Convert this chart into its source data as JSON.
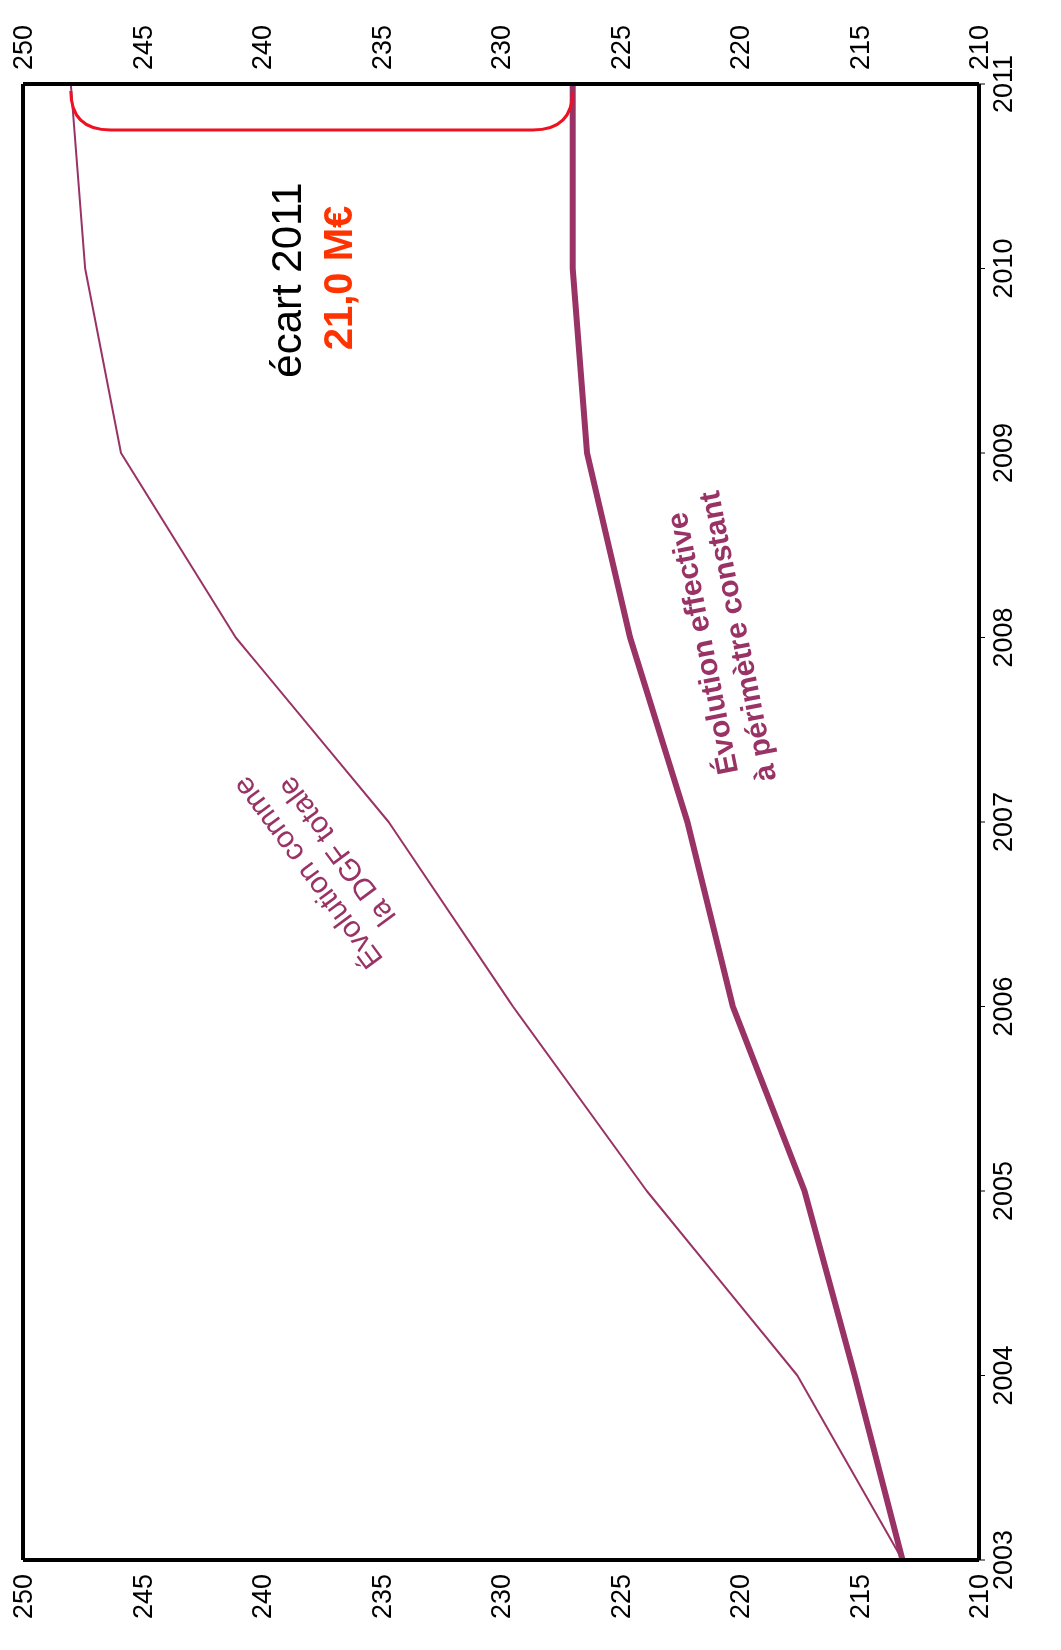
{
  "chart_data": {
    "type": "line",
    "series": [
      {
        "name": "Évolution comme la DGF totale",
        "color": "#993366",
        "x": [
          213.2,
          217.6,
          223.9,
          229.5,
          234.7,
          241.1,
          245.9,
          247.4,
          248.0
        ],
        "values": [
          2003,
          2004,
          2005,
          2006,
          2007,
          2008,
          2009,
          2010,
          2011
        ]
      },
      {
        "name": "Évolution effective à périmètre constant",
        "color": "#993366",
        "x": [
          213.2,
          215.2,
          217.3,
          220.3,
          222.2,
          224.6,
          226.4,
          227.0,
          227.0
        ],
        "values": [
          2003,
          2004,
          2005,
          2006,
          2007,
          2008,
          2009,
          2010,
          2011
        ]
      }
    ],
    "xlim": [
      250,
      210
    ],
    "xticks": [
      250,
      245,
      240,
      235,
      230,
      225,
      220,
      215,
      210
    ],
    "x2lim": [
      250,
      210
    ],
    "x2ticks": [
      250,
      245,
      240,
      235,
      230,
      225,
      220,
      215,
      210
    ],
    "ylim": [
      2003,
      2011
    ],
    "yticks": [
      2003,
      2004,
      2005,
      2006,
      2007,
      2008,
      2009,
      2010,
      2011
    ],
    "annotations": [
      "écart 2011",
      "21,0 M€"
    ],
    "grid": false,
    "legend": false,
    "marker": "none",
    "line_style": "solid"
  }
}
